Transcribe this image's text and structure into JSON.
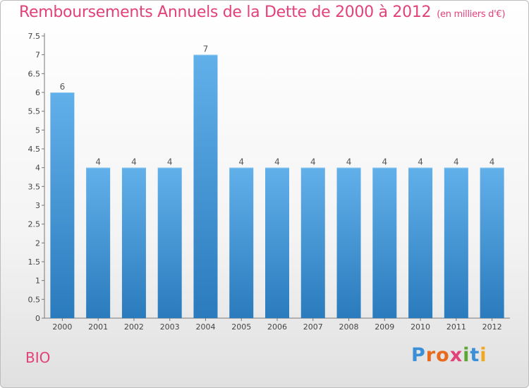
{
  "header": {
    "title": "Remboursements Annuels de la Dette de 2000 à 2012",
    "unit": "(en milliers d'€)"
  },
  "footer": {
    "commune": "BIO",
    "logo_letters": [
      "P",
      "r",
      "o",
      "x",
      "i",
      "t",
      "i"
    ],
    "logo_colors": [
      "#3a8fd6",
      "#e86a1f",
      "#e86a1f",
      "#e2417a",
      "#5aa832",
      "#3a8fd6",
      "#f0a81e"
    ]
  },
  "colors": {
    "bar_top": "#62b0ea",
    "bar_bottom": "#2a7bbd"
  },
  "chart_data": {
    "type": "bar",
    "categories": [
      "2000",
      "2001",
      "2002",
      "2003",
      "2004",
      "2005",
      "2006",
      "2007",
      "2008",
      "2009",
      "2010",
      "2011",
      "2012"
    ],
    "values": [
      6,
      4,
      4,
      4,
      7,
      4,
      4,
      4,
      4,
      4,
      4,
      4,
      4
    ],
    "data_labels": [
      "6",
      "4",
      "4",
      "4",
      "7",
      "4",
      "4",
      "4",
      "4",
      "4",
      "4",
      "4",
      "4"
    ],
    "yticks": [
      "0",
      "0.5",
      "1",
      "1.5",
      "2",
      "2.5",
      "3",
      "3.5",
      "4",
      "4.5",
      "5",
      "5.5",
      "6",
      "6.5",
      "7",
      "7.5"
    ],
    "ylim": [
      0,
      7.5
    ],
    "title": "Remboursements Annuels de la Dette de 2000 à 2012",
    "xlabel": "",
    "ylabel": "",
    "grid": false
  }
}
